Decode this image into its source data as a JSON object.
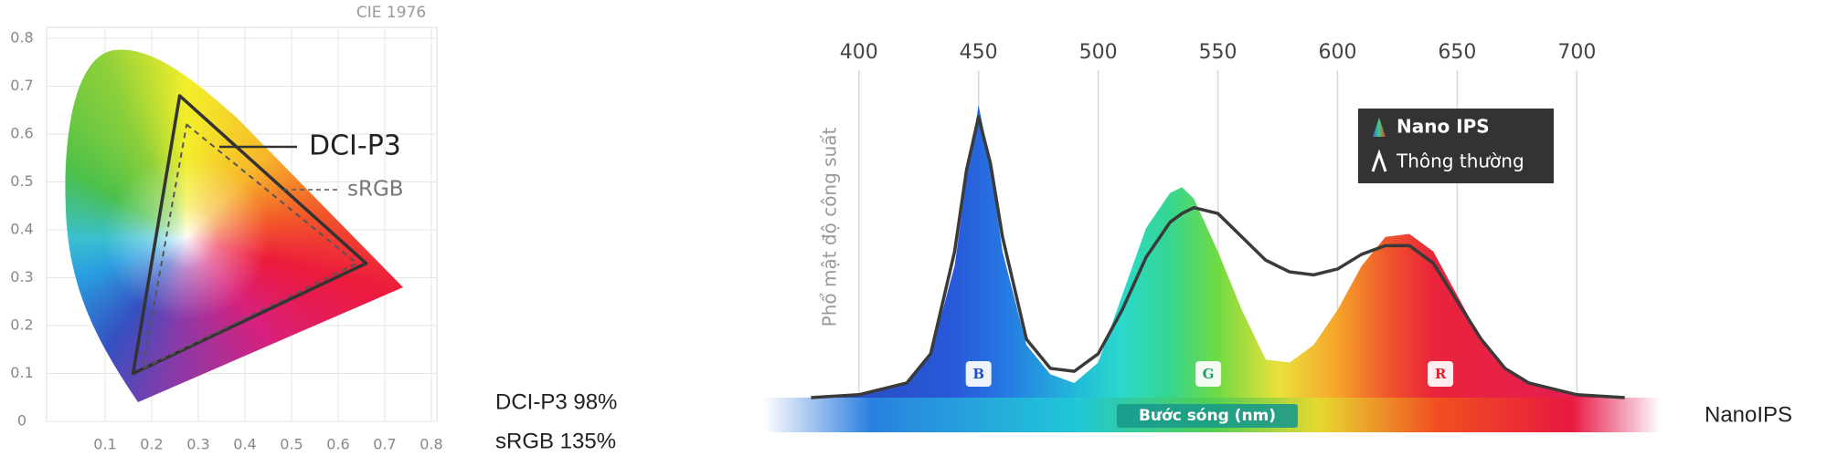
{
  "chart_data": [
    {
      "type": "polygon",
      "title": "CIE 1976",
      "xlim": [
        0,
        0.8
      ],
      "ylim": [
        0,
        0.8
      ],
      "xticks": [
        0.1,
        0.2,
        0.3,
        0.4,
        0.5,
        0.6,
        0.7,
        0.8
      ],
      "yticks": [
        0,
        0.1,
        0.2,
        0.3,
        0.4,
        0.5,
        0.6,
        0.7,
        0.8
      ],
      "grid": true,
      "series": [
        {
          "name": "DCI-P3",
          "color": "#333333",
          "dashed": false,
          "x": [
            0.26,
            0.66,
            0.16
          ],
          "y": [
            0.68,
            0.33,
            0.1
          ]
        },
        {
          "name": "sRGB",
          "color": "#555555",
          "dashed": true,
          "x": [
            0.275,
            0.64,
            0.18
          ],
          "y": [
            0.62,
            0.33,
            0.11
          ]
        }
      ],
      "notes": [
        "DCI-P3 98%",
        "sRGB 135%"
      ]
    },
    {
      "type": "area",
      "y_label": "Phổ mật độ công suất",
      "x_label": "Bước sóng (nm)",
      "caption": "NanoIPS",
      "xlim": [
        360,
        735
      ],
      "ylim": [
        0,
        1.12
      ],
      "xticks": [
        400,
        450,
        500,
        550,
        600,
        650,
        700
      ],
      "grid": true,
      "legend": "top-right",
      "x": [
        380,
        400,
        420,
        430,
        440,
        445,
        450,
        455,
        460,
        470,
        480,
        490,
        500,
        510,
        520,
        530,
        535,
        540,
        550,
        560,
        570,
        580,
        590,
        600,
        610,
        620,
        630,
        640,
        650,
        660,
        670,
        680,
        700,
        720
      ],
      "series": [
        {
          "name": "Nano IPS",
          "fill": true,
          "values": [
            0,
            0.01,
            0.05,
            0.15,
            0.45,
            0.75,
            1.0,
            0.8,
            0.5,
            0.18,
            0.08,
            0.05,
            0.12,
            0.35,
            0.58,
            0.7,
            0.72,
            0.68,
            0.5,
            0.3,
            0.13,
            0.12,
            0.18,
            0.3,
            0.45,
            0.55,
            0.56,
            0.5,
            0.35,
            0.2,
            0.1,
            0.05,
            0.01,
            0
          ]
        },
        {
          "name": "Thông thường",
          "fill": false,
          "color": "#3a3a3a",
          "values": [
            0,
            0.01,
            0.05,
            0.15,
            0.5,
            0.78,
            0.96,
            0.8,
            0.55,
            0.2,
            0.1,
            0.09,
            0.15,
            0.3,
            0.48,
            0.6,
            0.63,
            0.65,
            0.63,
            0.55,
            0.47,
            0.43,
            0.42,
            0.44,
            0.49,
            0.52,
            0.52,
            0.46,
            0.33,
            0.2,
            0.1,
            0.05,
            0.01,
            0
          ]
        }
      ],
      "bands": [
        {
          "label": "B",
          "x": 450,
          "color": "#1d4fc8"
        },
        {
          "label": "G",
          "x": 546,
          "color": "#1e9e60"
        },
        {
          "label": "R",
          "x": 643,
          "color": "#e02030"
        }
      ]
    }
  ]
}
